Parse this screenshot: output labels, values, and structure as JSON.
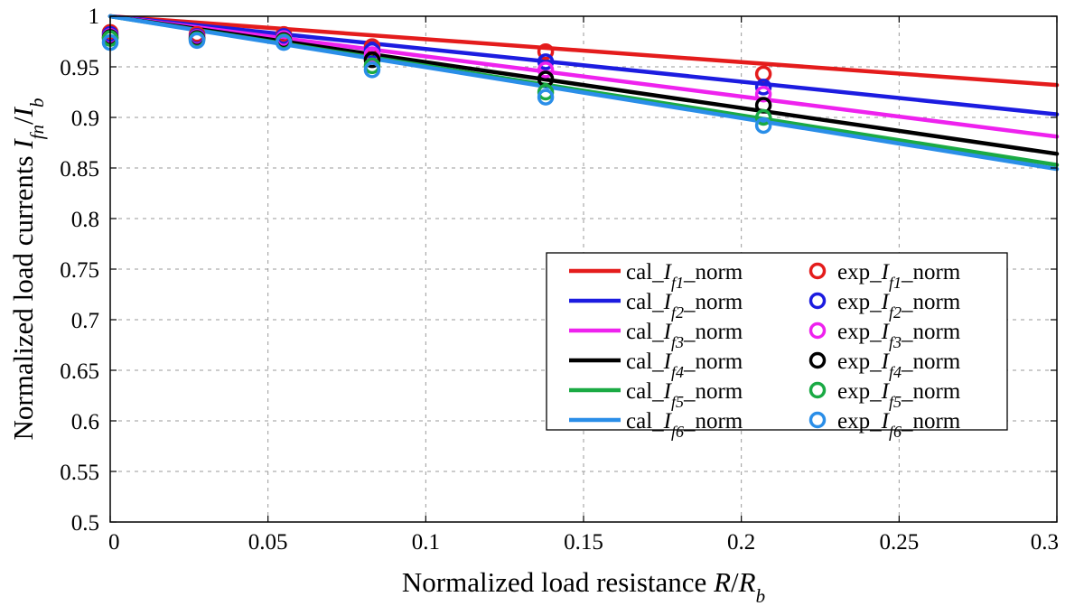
{
  "chart_data": {
    "type": "line",
    "title": "",
    "xlabel": "Normalized load resistance R/R_b",
    "xlabel_parts": [
      "Normalized load resistance ",
      "R",
      "/",
      "R",
      "b"
    ],
    "ylabel": "Normalized load currents I_fn/I_b",
    "ylabel_parts": [
      "Normalized load currents ",
      "I",
      "fn",
      "/",
      "I",
      "b"
    ],
    "xlim": [
      0,
      0.3
    ],
    "ylim": [
      0.5,
      1
    ],
    "xticks": [
      0,
      0.05,
      0.1,
      0.15,
      0.2,
      0.25,
      0.3
    ],
    "xtick_labels": [
      "0",
      "0.05",
      "0.1",
      "0.15",
      "0.2",
      "0.25",
      "0.3"
    ],
    "yticks": [
      0.5,
      0.55,
      0.6,
      0.65,
      0.7,
      0.75,
      0.8,
      0.85,
      0.9,
      0.95,
      1
    ],
    "ytick_labels": [
      "0.5",
      "0.55",
      "0.6",
      "0.65",
      "0.7",
      "0.75",
      "0.8",
      "0.85",
      "0.9",
      "0.95",
      "1"
    ],
    "grid": true,
    "legend_position": "center-right",
    "series": [
      {
        "name": "cal_If1_norm",
        "legend": {
          "prefix": "cal_",
          "base": "I",
          "sub": "f1",
          "suffix": "_norm"
        },
        "kind": "line",
        "color": "#e41c1c",
        "x": [
          0,
          0.3
        ],
        "y": [
          1,
          0.932
        ]
      },
      {
        "name": "cal_If2_norm",
        "legend": {
          "prefix": "cal_",
          "base": "I",
          "sub": "f2",
          "suffix": "_norm"
        },
        "kind": "line",
        "color": "#1c1ce0",
        "x": [
          0,
          0.3
        ],
        "y": [
          1,
          0.903
        ]
      },
      {
        "name": "cal_If3_norm",
        "legend": {
          "prefix": "cal_",
          "base": "I",
          "sub": "f3",
          "suffix": "_norm"
        },
        "kind": "line",
        "color": "#ee22ee",
        "x": [
          0,
          0.3
        ],
        "y": [
          1,
          0.881
        ]
      },
      {
        "name": "cal_If4_norm",
        "legend": {
          "prefix": "cal_",
          "base": "I",
          "sub": "f4",
          "suffix": "_norm"
        },
        "kind": "line",
        "color": "#000000",
        "x": [
          0,
          0.3
        ],
        "y": [
          1,
          0.864
        ]
      },
      {
        "name": "cal_If5_norm",
        "legend": {
          "prefix": "cal_",
          "base": "I",
          "sub": "f5",
          "suffix": "_norm"
        },
        "kind": "line",
        "color": "#1aaa44",
        "x": [
          0,
          0.3
        ],
        "y": [
          1,
          0.853
        ]
      },
      {
        "name": "cal_If6_norm",
        "legend": {
          "prefix": "cal_",
          "base": "I",
          "sub": "f6",
          "suffix": "_norm"
        },
        "kind": "line",
        "color": "#2a8ee8",
        "x": [
          0,
          0.3
        ],
        "y": [
          1,
          0.849
        ]
      },
      {
        "name": "exp_If1_norm",
        "legend": {
          "prefix": "exp_",
          "base": "I",
          "sub": "f1",
          "suffix": "_norm"
        },
        "kind": "marker",
        "color": "#e41c1c",
        "x": [
          0,
          0.0275,
          0.055,
          0.083,
          0.138,
          0.207
        ],
        "y": [
          0.984,
          0.982,
          0.982,
          0.97,
          0.965,
          0.943
        ]
      },
      {
        "name": "exp_If2_norm",
        "legend": {
          "prefix": "exp_",
          "base": "I",
          "sub": "f2",
          "suffix": "_norm"
        },
        "kind": "marker",
        "color": "#1c1ce0",
        "x": [
          0,
          0.0275,
          0.055,
          0.083,
          0.138,
          0.207
        ],
        "y": [
          0.982,
          0.98,
          0.98,
          0.966,
          0.955,
          0.93
        ]
      },
      {
        "name": "exp_If3_norm",
        "legend": {
          "prefix": "exp_",
          "base": "I",
          "sub": "f3",
          "suffix": "_norm"
        },
        "kind": "marker",
        "color": "#ee22ee",
        "x": [
          0,
          0.0275,
          0.055,
          0.083,
          0.138,
          0.207
        ],
        "y": [
          0.98,
          0.979,
          0.978,
          0.962,
          0.947,
          0.923
        ]
      },
      {
        "name": "exp_If4_norm",
        "legend": {
          "prefix": "exp_",
          "base": "I",
          "sub": "f4",
          "suffix": "_norm"
        },
        "kind": "marker",
        "color": "#000000",
        "x": [
          0,
          0.0275,
          0.055,
          0.083,
          0.138,
          0.207
        ],
        "y": [
          0.979,
          0.978,
          0.976,
          0.957,
          0.938,
          0.912
        ]
      },
      {
        "name": "exp_If5_norm",
        "legend": {
          "prefix": "exp_",
          "base": "I",
          "sub": "f5",
          "suffix": "_norm"
        },
        "kind": "marker",
        "color": "#1aaa44",
        "x": [
          0,
          0.0275,
          0.055,
          0.083,
          0.138,
          0.207
        ],
        "y": [
          0.978,
          0.977,
          0.975,
          0.951,
          0.925,
          0.9
        ]
      },
      {
        "name": "exp_If6_norm",
        "legend": {
          "prefix": "exp_",
          "base": "I",
          "sub": "f6",
          "suffix": "_norm"
        },
        "kind": "marker",
        "color": "#2a8ee8",
        "x": [
          0,
          0.0275,
          0.055,
          0.083,
          0.138,
          0.207
        ],
        "y": [
          0.974,
          0.976,
          0.974,
          0.947,
          0.92,
          0.892
        ]
      }
    ]
  }
}
